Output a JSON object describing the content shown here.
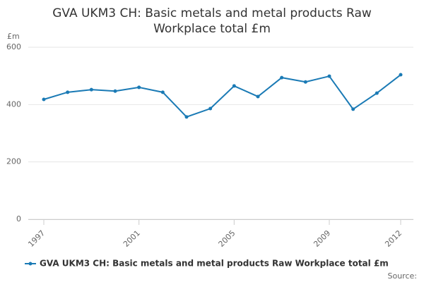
{
  "chart_data": {
    "type": "line",
    "title": "GVA UKM3 CH: Basic metals and metal products Raw Workplace total £m",
    "y_label": "£m",
    "source": "Source:",
    "x": [
      1997,
      1998,
      1999,
      2000,
      2001,
      2002,
      2003,
      2004,
      2005,
      2006,
      2007,
      2008,
      2009,
      2010,
      2011,
      2012
    ],
    "series": [
      {
        "name": "GVA UKM3 CH: Basic metals and metal products Raw Workplace total £m",
        "color": "#1a7ab5",
        "values": [
          418,
          443,
          452,
          447,
          460,
          443,
          357,
          386,
          465,
          428,
          494,
          479,
          499,
          384,
          440,
          504
        ]
      }
    ],
    "xlim": [
      1997,
      2012
    ],
    "xticks": [
      1997,
      2001,
      2005,
      2009,
      2012
    ],
    "ylim": [
      0,
      600
    ],
    "yticks": [
      0,
      200,
      400,
      600
    ],
    "grid": true,
    "legend": "bottom"
  }
}
